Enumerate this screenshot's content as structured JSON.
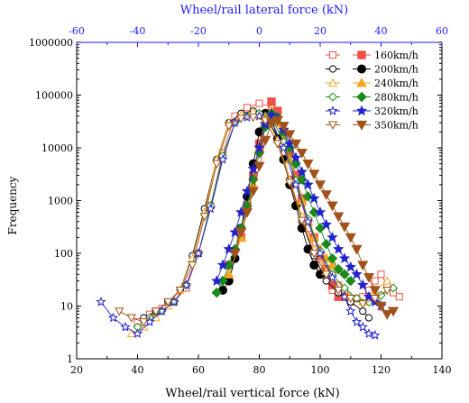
{
  "chart_data": {
    "type": "scatter",
    "xlabel": "Wheel/rail vertical force (kN)",
    "x2label": "Wheel/rail lateral force (kN)",
    "ylabel": "Frequency",
    "xlim": [
      20,
      140
    ],
    "x2lim": [
      -60,
      60
    ],
    "ylim": [
      1,
      1000000
    ],
    "yscale": "log",
    "xticks": [
      "20",
      "40",
      "60",
      "80",
      "100",
      "120",
      "140"
    ],
    "x2ticks": [
      "-60",
      "-40",
      "-20",
      "0",
      "20",
      "40",
      "60"
    ],
    "yticks": [
      "1",
      "10",
      "100",
      "1000",
      "10000",
      "100000",
      "1000000"
    ],
    "legend_position": "top-right",
    "legend_entries": [
      {
        "label": "160km/h",
        "color": "#f0504a"
      },
      {
        "label": "200km/h",
        "color": "#000000"
      },
      {
        "label": "240km/h",
        "color": "#f5a623"
      },
      {
        "label": "280km/h",
        "color": "#1a8a1a"
      },
      {
        "label": "320km/h",
        "color": "#2222cc"
      },
      {
        "label": "350km/h",
        "color": "#a0521a"
      }
    ],
    "series": [
      {
        "name": "160km/h",
        "axis": "lateral",
        "marker": "square-open",
        "color": "#f0504a",
        "x": [
          -40,
          -36,
          -32,
          -28,
          -24,
          -20,
          -16,
          -12,
          -8,
          -4,
          0,
          4,
          8,
          10,
          12,
          14,
          16,
          18,
          20,
          22,
          24,
          26,
          28,
          30,
          32,
          34,
          36,
          38,
          40,
          42,
          44,
          46
        ],
        "y": [
          5,
          7,
          9,
          12,
          22,
          100,
          800,
          8000,
          40000,
          58000,
          70000,
          60000,
          18000,
          9000,
          2500,
          900,
          300,
          120,
          60,
          35,
          20,
          25,
          18,
          12,
          14,
          15,
          20,
          30,
          40,
          25,
          18,
          15
        ]
      },
      {
        "name": "160km/h",
        "axis": "vertical",
        "marker": "square-filled",
        "color": "#f0504a",
        "x": [
          70,
          74,
          76,
          78,
          80,
          82,
          84,
          86,
          88,
          90,
          92,
          94,
          96,
          98,
          100,
          102,
          104,
          106,
          108
        ],
        "y": [
          60,
          200,
          800,
          3000,
          12000,
          40000,
          75000,
          50000,
          20000,
          8000,
          3000,
          1100,
          400,
          200,
          90,
          50,
          25,
          15,
          15
        ]
      },
      {
        "name": "200km/h",
        "axis": "lateral",
        "marker": "circle-open",
        "color": "#000000",
        "x": [
          -38,
          -34,
          -30,
          -26,
          -22,
          -18,
          -14,
          -10,
          -6,
          -2,
          2,
          6,
          10,
          14,
          18,
          22,
          26,
          30,
          34,
          36
        ],
        "y": [
          6,
          8,
          12,
          20,
          90,
          700,
          6000,
          30000,
          45000,
          50000,
          45000,
          15000,
          2500,
          400,
          90,
          30,
          18,
          12,
          8,
          6
        ]
      },
      {
        "name": "200km/h",
        "axis": "vertical",
        "marker": "circle-filled",
        "color": "#000000",
        "x": [
          68,
          70,
          72,
          74,
          76,
          78,
          80,
          82,
          84,
          86,
          88,
          90,
          92,
          94,
          96,
          98,
          100
        ],
        "y": [
          20,
          30,
          80,
          300,
          1200,
          5000,
          20000,
          45000,
          35000,
          15000,
          6000,
          2000,
          800,
          300,
          120,
          60,
          40
        ]
      },
      {
        "name": "240km/h",
        "axis": "lateral",
        "marker": "triangle-open",
        "color": "#f5a623",
        "x": [
          -42,
          -38,
          -34,
          -30,
          -26,
          -22,
          -18,
          -14,
          -10,
          -6,
          -2,
          2,
          6,
          10,
          14,
          18,
          22,
          26,
          30,
          34,
          38,
          42
        ],
        "y": [
          3,
          4,
          6,
          10,
          20,
          80,
          600,
          6000,
          30000,
          42000,
          48000,
          40000,
          14000,
          2500,
          500,
          120,
          45,
          25,
          15,
          12,
          20,
          30
        ]
      },
      {
        "name": "240km/h",
        "axis": "vertical",
        "marker": "triangle-filled",
        "color": "#f5a623",
        "x": [
          70,
          74,
          78,
          80,
          82,
          84,
          86,
          88,
          90,
          92,
          94,
          96,
          98,
          100,
          102,
          104,
          106
        ],
        "y": [
          40,
          200,
          2000,
          10000,
          35000,
          50000,
          30000,
          14000,
          6000,
          2500,
          1000,
          400,
          200,
          120,
          80,
          60,
          50
        ]
      },
      {
        "name": "280km/h",
        "axis": "lateral",
        "marker": "diamond-open",
        "color": "#1a8a1a",
        "x": [
          -40,
          -36,
          -32,
          -28,
          -24,
          -20,
          -16,
          -12,
          -8,
          -4,
          0,
          4,
          8,
          12,
          16,
          20,
          24,
          28,
          32,
          36,
          40,
          44
        ],
        "y": [
          4,
          6,
          8,
          12,
          25,
          100,
          800,
          7000,
          30000,
          40000,
          45000,
          38000,
          13000,
          2400,
          450,
          110,
          40,
          22,
          14,
          12,
          16,
          22
        ]
      },
      {
        "name": "280km/h",
        "axis": "vertical",
        "marker": "diamond-filled",
        "color": "#1a8a1a",
        "x": [
          66,
          68,
          70,
          72,
          74,
          76,
          78,
          80,
          82,
          84,
          86,
          88,
          90,
          92,
          94,
          96,
          98,
          100,
          102,
          104,
          106,
          108,
          110
        ],
        "y": [
          18,
          30,
          60,
          120,
          300,
          800,
          2500,
          8000,
          25000,
          45000,
          38000,
          20000,
          10000,
          5000,
          2500,
          1200,
          600,
          300,
          150,
          80,
          50,
          40,
          30
        ]
      },
      {
        "name": "320km/h",
        "axis": "lateral",
        "marker": "star-open",
        "color": "#2222cc",
        "x": [
          -52,
          -48,
          -44,
          -40,
          -36,
          -32,
          -28,
          -24,
          -20,
          -16,
          -12,
          -8,
          -4,
          0,
          4,
          8,
          12,
          16,
          20,
          24,
          28,
          30,
          32,
          34,
          36,
          38
        ],
        "y": [
          12,
          6,
          4,
          3,
          5,
          8,
          12,
          25,
          100,
          700,
          6000,
          30000,
          38000,
          40000,
          32000,
          10000,
          2000,
          400,
          100,
          35,
          15,
          8,
          5,
          4,
          3,
          2.8
        ]
      },
      {
        "name": "320km/h",
        "axis": "vertical",
        "marker": "star-filled",
        "color": "#2222cc",
        "x": [
          66,
          68,
          70,
          72,
          74,
          76,
          78,
          80,
          82,
          84,
          86,
          88,
          90,
          92,
          94,
          96,
          98,
          100,
          102,
          104,
          106,
          108,
          110,
          112,
          114,
          116,
          118,
          120
        ],
        "y": [
          30,
          60,
          120,
          250,
          600,
          1500,
          4000,
          10000,
          28000,
          42000,
          36000,
          22000,
          12000,
          6500,
          3500,
          2000,
          1100,
          600,
          350,
          200,
          120,
          80,
          55,
          40,
          25,
          15,
          12,
          10
        ]
      },
      {
        "name": "350km/h",
        "axis": "lateral",
        "marker": "tri-down-open",
        "color": "#a0521a",
        "x": [
          -46,
          -42,
          -38,
          -34,
          -30,
          -26,
          -22,
          -18,
          -14,
          -10,
          -6,
          -2,
          2,
          6,
          10,
          14,
          18,
          22,
          26,
          30,
          34,
          38,
          42
        ],
        "y": [
          8,
          6,
          5,
          8,
          12,
          20,
          60,
          500,
          5000,
          26000,
          36000,
          38000,
          33000,
          12000,
          2200,
          420,
          100,
          40,
          20,
          14,
          11,
          14,
          20
        ]
      },
      {
        "name": "350km/h",
        "axis": "vertical",
        "marker": "tri-down-filled",
        "color": "#a0521a",
        "x": [
          72,
          74,
          76,
          78,
          80,
          82,
          84,
          86,
          88,
          90,
          92,
          94,
          96,
          98,
          100,
          102,
          104,
          106,
          108,
          110,
          112,
          114,
          116,
          118,
          120,
          122,
          124
        ],
        "y": [
          100,
          250,
          600,
          1500,
          4500,
          14000,
          30000,
          33000,
          26000,
          18000,
          12000,
          8000,
          5000,
          3200,
          2000,
          1300,
          800,
          500,
          320,
          200,
          120,
          60,
          35,
          20,
          10,
          7,
          8
        ]
      }
    ]
  }
}
